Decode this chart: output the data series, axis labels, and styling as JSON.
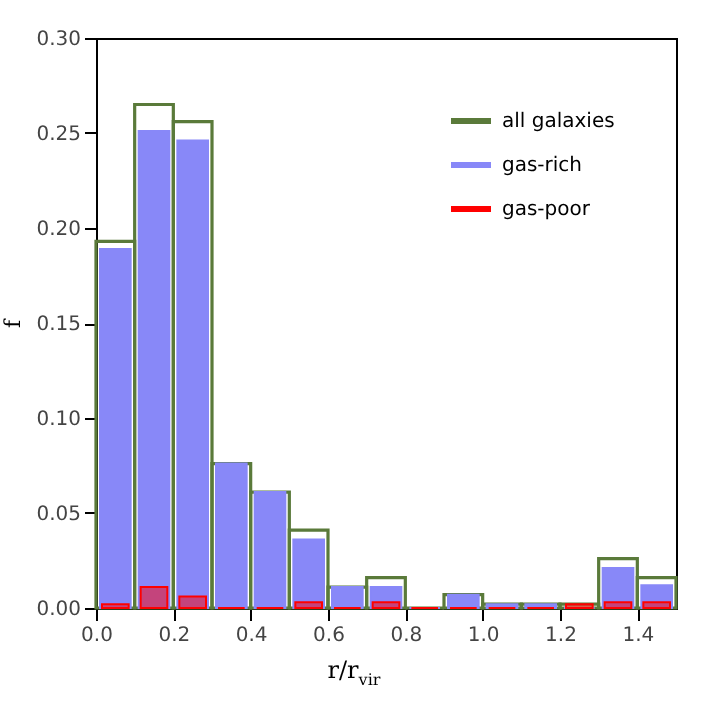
{
  "chart_data": {
    "type": "histogram",
    "xlabel": "r/r$_{vir}$",
    "ylabel": "f",
    "bins": [
      0,
      0.1,
      0.2,
      0.3,
      0.4,
      0.5,
      0.6,
      0.7,
      0.8,
      0.9,
      1.0,
      1.1,
      1.2,
      1.3,
      1.4,
      1.5
    ],
    "series": [
      {
        "name": "all galaxies",
        "color": "#5a7a3a",
        "values": [
          0.193,
          0.265,
          0.256,
          0.076,
          0.061,
          0.041,
          0.011,
          0.016,
          0,
          0.007,
          0.002,
          0.002,
          0.002,
          0.026,
          0.016
        ]
      },
      {
        "name": "gas-rich",
        "color": "#8888f8",
        "values": [
          0.189,
          0.251,
          0.246,
          0.076,
          0.061,
          0.036,
          0.011,
          0.011,
          0,
          0.007,
          0.002,
          0.002,
          0,
          0.021,
          0.012
        ]
      },
      {
        "name": "gas-poor",
        "color": "#ff0000",
        "values": [
          0.002,
          0.011,
          0.006,
          0,
          0,
          0.003,
          0,
          0.003,
          0,
          0,
          0,
          0,
          0.002,
          0.003,
          0.003
        ]
      }
    ],
    "xlim": [
      0,
      1.5
    ],
    "ylim": [
      0,
      0.3
    ],
    "xticks": [
      {
        "value": 0,
        "label": "0.0"
      },
      {
        "value": 0.2,
        "label": "0.2"
      },
      {
        "value": 0.4,
        "label": "0.4"
      },
      {
        "value": 0.6,
        "label": "0.6"
      },
      {
        "value": 0.8,
        "label": "0.8"
      },
      {
        "value": 1.0,
        "label": "1.0"
      },
      {
        "value": 1.2,
        "label": "1.2"
      },
      {
        "value": 1.4,
        "label": "1.4"
      }
    ],
    "yticks": [
      {
        "value": 0,
        "label": "0.00"
      },
      {
        "value": 0.05,
        "label": "0.05"
      },
      {
        "value": 0.1,
        "label": "0.10"
      },
      {
        "value": 0.15,
        "label": "0.15"
      },
      {
        "value": 0.2,
        "label": "0.20"
      },
      {
        "value": 0.25,
        "label": "0.25"
      },
      {
        "value": 0.3,
        "label": "0.30"
      }
    ],
    "legend": "top right",
    "grid": false
  }
}
